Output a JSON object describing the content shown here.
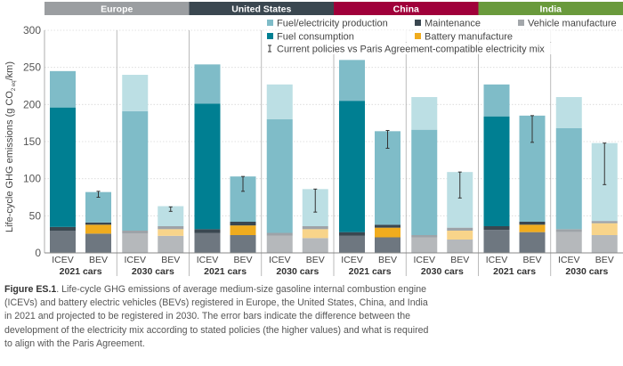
{
  "chart_data": {
    "type": "bar",
    "stacked": true,
    "ylabel_parts": [
      "Life-cycle GHG emissions (g CO",
      "2 eq",
      "/km)"
    ],
    "ylim": [
      0,
      300
    ],
    "yticks": [
      "0",
      "50",
      "100",
      "150",
      "200",
      "250",
      "300"
    ],
    "grid": true,
    "legend_position": "top-right",
    "legend": [
      {
        "key": "fuel_production",
        "label": "Fuel/electricity production",
        "color": "#7fbcc8"
      },
      {
        "key": "maintenance",
        "label": "Maintenance",
        "color": "#3a4750"
      },
      {
        "key": "vehicle",
        "label": "Vehicle manufacture",
        "color": "#a3a7ab"
      },
      {
        "key": "fuel_consumption",
        "label": "Fuel consumption",
        "color": "#007f92"
      },
      {
        "key": "battery",
        "label": "Battery manufacture",
        "color": "#f0ac1e"
      },
      {
        "key": "error",
        "label": "Current policies vs Paris Agreement-compatible electricity mix",
        "color": "#333333"
      }
    ],
    "colors": {
      "solid": {
        "vehicle": "#6e7780",
        "maintenance": "#3a4750",
        "battery": "#f0ac1e",
        "fuel_consumption": "#007f92",
        "fuel_production": "#7fbcc8"
      },
      "faded": {
        "vehicle": "#b5b8bb",
        "maintenance": "#9ea3a8",
        "battery": "#f8d48a",
        "fuel_consumption": "#7fbcc8",
        "fuel_production": "#bcdfe4"
      }
    },
    "regions": [
      {
        "name": "Europe",
        "color": "#9b9ea1",
        "groups": [
          {
            "label": "2021 cars",
            "faded": false,
            "bars": [
              {
                "label": "ICEV",
                "segments": {
                  "vehicle": 30,
                  "maintenance": 5,
                  "fuel_consumption": 161,
                  "fuel_production": 49
                }
              },
              {
                "label": "BEV",
                "segments": {
                  "vehicle": 26,
                  "battery": 12,
                  "maintenance": 3,
                  "fuel_production": 41
                },
                "error": [
                  75,
                  83
                ]
              }
            ]
          },
          {
            "label": "2030 cars",
            "faded": true,
            "bars": [
              {
                "label": "ICEV",
                "segments": {
                  "vehicle": 26,
                  "maintenance": 4,
                  "fuel_consumption": 161,
                  "fuel_production": 49
                }
              },
              {
                "label": "BEV",
                "segments": {
                  "vehicle": 23,
                  "battery": 9,
                  "maintenance": 4,
                  "fuel_production": 27
                },
                "error": [
                  56,
                  62
                ]
              }
            ]
          }
        ]
      },
      {
        "name": "United States",
        "color": "#3a4750",
        "groups": [
          {
            "label": "2021 cars",
            "faded": false,
            "bars": [
              {
                "label": "ICEV",
                "segments": {
                  "vehicle": 27,
                  "maintenance": 5,
                  "fuel_consumption": 169,
                  "fuel_production": 53
                }
              },
              {
                "label": "BEV",
                "segments": {
                  "vehicle": 24,
                  "battery": 13,
                  "maintenance": 5,
                  "fuel_production": 61
                },
                "error": [
                  83,
                  103
                ]
              }
            ]
          },
          {
            "label": "2030 cars",
            "faded": true,
            "bars": [
              {
                "label": "ICEV",
                "segments": {
                  "vehicle": 23,
                  "maintenance": 4,
                  "fuel_consumption": 153,
                  "fuel_production": 47
                }
              },
              {
                "label": "BEV",
                "segments": {
                  "vehicle": 20,
                  "battery": 12,
                  "maintenance": 4,
                  "fuel_production": 50
                },
                "error": [
                  55,
                  86
                ]
              }
            ]
          }
        ]
      },
      {
        "name": "China",
        "color": "#a0003a",
        "groups": [
          {
            "label": "2021 cars",
            "faded": false,
            "bars": [
              {
                "label": "ICEV",
                "segments": {
                  "vehicle": 23,
                  "maintenance": 5,
                  "fuel_consumption": 177,
                  "fuel_production": 55
                }
              },
              {
                "label": "BEV",
                "segments": {
                  "vehicle": 21,
                  "battery": 13,
                  "maintenance": 4,
                  "fuel_production": 126
                },
                "error": [
                  141,
                  165
                ]
              }
            ]
          },
          {
            "label": "2030 cars",
            "faded": true,
            "bars": [
              {
                "label": "ICEV",
                "segments": {
                  "vehicle": 21,
                  "maintenance": 3,
                  "fuel_consumption": 142,
                  "fuel_production": 44
                }
              },
              {
                "label": "BEV",
                "segments": {
                  "vehicle": 18,
                  "battery": 12,
                  "maintenance": 4,
                  "fuel_production": 75
                },
                "error": [
                  74,
                  109
                ]
              }
            ]
          }
        ]
      },
      {
        "name": "India",
        "color": "#6a9a3c",
        "groups": [
          {
            "label": "2021 cars",
            "faded": false,
            "bars": [
              {
                "label": "ICEV",
                "segments": {
                  "vehicle": 31,
                  "maintenance": 5,
                  "fuel_consumption": 148,
                  "fuel_production": 43
                }
              },
              {
                "label": "BEV",
                "segments": {
                  "vehicle": 28,
                  "battery": 10,
                  "maintenance": 4,
                  "fuel_production": 143
                },
                "error": [
                  149,
                  185
                ]
              }
            ]
          },
          {
            "label": "2030 cars",
            "faded": true,
            "bars": [
              {
                "label": "ICEV",
                "segments": {
                  "vehicle": 28,
                  "maintenance": 4,
                  "fuel_consumption": 136,
                  "fuel_production": 42
                }
              },
              {
                "label": "BEV",
                "segments": {
                  "vehicle": 24,
                  "battery": 16,
                  "maintenance": 3,
                  "fuel_production": 105
                },
                "error": [
                  92,
                  148
                ]
              }
            ]
          }
        ]
      }
    ]
  },
  "caption": {
    "label": "Figure ES.1",
    "text": ". Life-cycle GHG emissions of average medium-size gasoline internal combustion engine (ICEVs) and battery electric vehicles (BEVs) registered in Europe, the United States, China, and India in 2021 and projected to be registered in 2030. The error bars indicate the difference between the development of the electricity mix according to stated policies (the higher values) and what is required to align with the Paris Agreement."
  }
}
